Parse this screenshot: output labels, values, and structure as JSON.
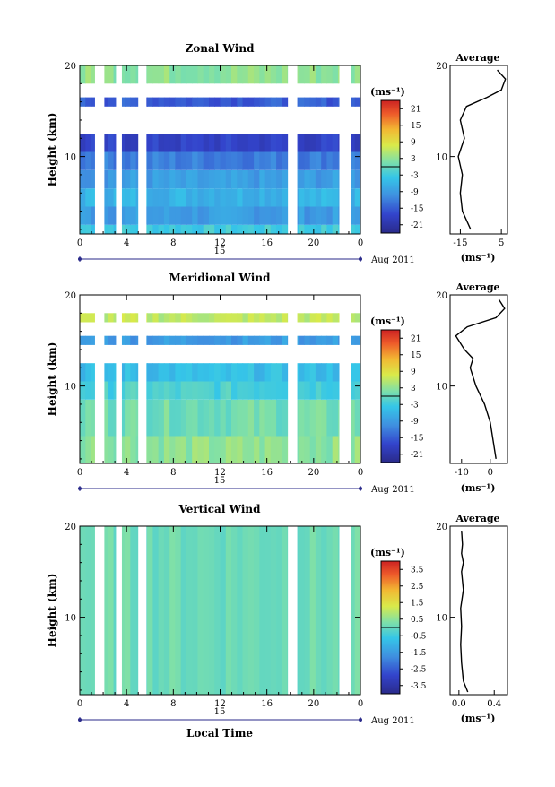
{
  "date": {
    "day": "15",
    "month_year": "Aug 2011"
  },
  "x_axis": {
    "label": "Local Time",
    "ticks": [
      "0",
      "4",
      "8",
      "12",
      "16",
      "20",
      "0"
    ],
    "range": [
      0,
      24
    ]
  },
  "height_axis": {
    "label": "Height (km)",
    "ticks": [
      "10",
      "20"
    ],
    "range": [
      1.5,
      20
    ]
  },
  "cb_unit_label": "(ms⁻¹)",
  "avg_title": "Average",
  "avg_unit": "(ms⁻¹)",
  "chart_data": [
    {
      "type": "heatmap",
      "title": "Zonal Wind",
      "xlabel": "",
      "ylabel": "Height (km)",
      "xlim": [
        0,
        24
      ],
      "ylim": [
        1.5,
        20
      ],
      "data_gaps_hours": [
        [
          1.3,
          2.1
        ],
        [
          3.1,
          3.6
        ],
        [
          5.0,
          5.7
        ],
        [
          17.8,
          18.6
        ],
        [
          22.2,
          23.2
        ]
      ],
      "layers": [
        {
          "h0": 1.5,
          "h1": 2.5,
          "value": -3
        },
        {
          "h0": 2.5,
          "h1": 4.5,
          "value": -9
        },
        {
          "h0": 4.5,
          "h1": 6.5,
          "value": -6
        },
        {
          "h0": 6.5,
          "h1": 8.5,
          "value": -9
        },
        {
          "h0": 8.5,
          "h1": 10.5,
          "value": -12
        },
        {
          "h0": 10.5,
          "h1": 12.5,
          "value": -18
        },
        {
          "h0": 15.5,
          "h1": 16.5,
          "value": -15
        },
        {
          "h0": 18.0,
          "h1": 20.0,
          "value": 3
        }
      ],
      "colorbar": {
        "ticks": [
          21,
          15,
          9,
          3,
          -3,
          -9,
          -15,
          -21
        ],
        "range": [
          -24,
          24
        ]
      },
      "average_profile": {
        "xlim": [
          -20,
          8
        ],
        "xticks": [
          "-15",
          "5"
        ],
        "points": [
          [
            -10,
            2
          ],
          [
            -14,
            4
          ],
          [
            -15,
            6
          ],
          [
            -14,
            8
          ],
          [
            -16,
            10
          ],
          [
            -13,
            12
          ],
          [
            -15,
            14
          ],
          [
            -12,
            15.5
          ],
          [
            -2,
            16.5
          ],
          [
            5,
            17.3
          ],
          [
            7,
            18.5
          ],
          [
            3,
            19.5
          ]
        ]
      }
    },
    {
      "type": "heatmap",
      "title": "Meridional Wind",
      "xlabel": "",
      "ylabel": "Height (km)",
      "xlim": [
        0,
        24
      ],
      "ylim": [
        1.5,
        20
      ],
      "data_gaps_hours": [
        [
          1.3,
          2.1
        ],
        [
          3.1,
          3.6
        ],
        [
          5.0,
          5.7
        ],
        [
          17.8,
          18.6
        ],
        [
          22.2,
          23.2
        ]
      ],
      "layers": [
        {
          "h0": 1.5,
          "h1": 4.5,
          "value": 3
        },
        {
          "h0": 4.5,
          "h1": 8.5,
          "value": 1
        },
        {
          "h0": 8.5,
          "h1": 10.5,
          "value": -2
        },
        {
          "h0": 10.5,
          "h1": 12.5,
          "value": -5
        },
        {
          "h0": 14.5,
          "h1": 15.5,
          "value": -9
        },
        {
          "h0": 17.0,
          "h1": 18.0,
          "value": 6
        }
      ],
      "colorbar": {
        "ticks": [
          21,
          15,
          9,
          3,
          -3,
          -9,
          -15,
          -21
        ],
        "range": [
          -24,
          24
        ]
      },
      "average_profile": {
        "xlim": [
          -14,
          6
        ],
        "xticks": [
          "-10",
          "0"
        ],
        "points": [
          [
            2,
            2
          ],
          [
            1,
            4
          ],
          [
            0,
            6
          ],
          [
            -2,
            8
          ],
          [
            -5,
            10
          ],
          [
            -7,
            12
          ],
          [
            -6,
            13
          ],
          [
            -9,
            14
          ],
          [
            -12,
            15.5
          ],
          [
            -8,
            16.5
          ],
          [
            2,
            17.5
          ],
          [
            5,
            18.5
          ],
          [
            3,
            19.5
          ]
        ]
      }
    },
    {
      "type": "heatmap",
      "title": "Vertical Wind",
      "xlabel": "Local Time",
      "ylabel": "Height (km)",
      "xlim": [
        0,
        24
      ],
      "ylim": [
        1.5,
        20
      ],
      "data_gaps_hours": [
        [
          1.3,
          2.1
        ],
        [
          3.1,
          3.6
        ],
        [
          5.0,
          5.7
        ],
        [
          17.8,
          18.6
        ],
        [
          22.2,
          23.2
        ]
      ],
      "layers": [
        {
          "h0": 1.5,
          "h1": 20.0,
          "value": 0.1
        }
      ],
      "colorbar": {
        "ticks": [
          3.5,
          2.5,
          1.5,
          0.5,
          -0.5,
          -1.5,
          -2.5,
          -3.5
        ],
        "range": [
          -4,
          4
        ]
      },
      "average_profile": {
        "xlim": [
          -0.1,
          0.55
        ],
        "xticks": [
          "0.0",
          "0.4"
        ],
        "points": [
          [
            0.1,
            1.8
          ],
          [
            0.05,
            3
          ],
          [
            0.03,
            5
          ],
          [
            0.02,
            7
          ],
          [
            0.03,
            9
          ],
          [
            0.02,
            11
          ],
          [
            0.05,
            13
          ],
          [
            0.03,
            15
          ],
          [
            0.05,
            16
          ],
          [
            0.03,
            17
          ],
          [
            0.04,
            18
          ],
          [
            0.03,
            19.5
          ]
        ]
      }
    }
  ]
}
